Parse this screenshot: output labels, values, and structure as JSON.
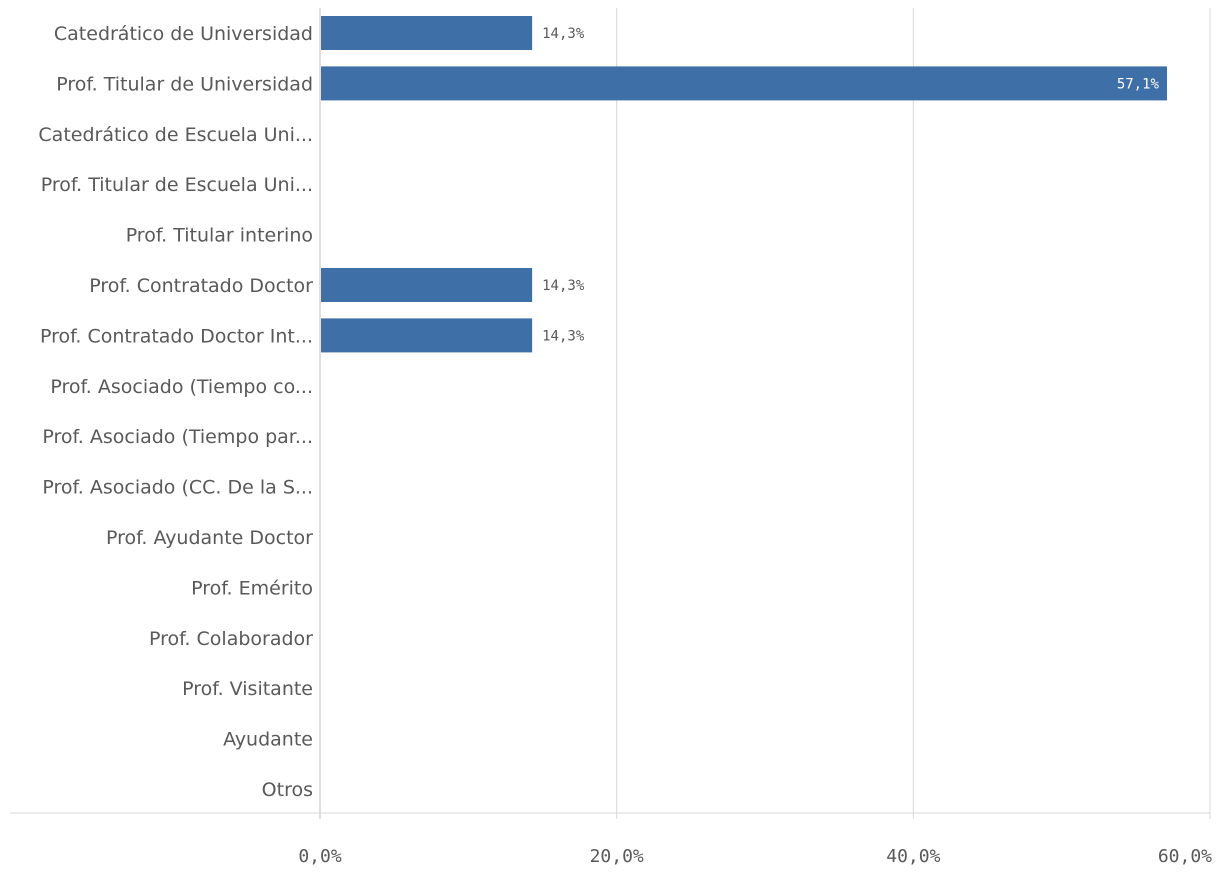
{
  "chart_data": {
    "type": "bar",
    "orientation": "horizontal",
    "categories": [
      "Catedrático de Universidad",
      "Prof. Titular de Universidad",
      "Catedrático de Escuela Uni...",
      "Prof. Titular de Escuela Uni...",
      "Prof. Titular interino",
      "Prof. Contratado Doctor",
      "Prof. Contratado Doctor Int...",
      "Prof. Asociado (Tiempo co...",
      "Prof. Asociado (Tiempo par...",
      "Prof. Asociado (CC. De la S...",
      "Prof. Ayudante Doctor",
      "Prof. Emérito",
      "Prof. Colaborador",
      "Prof. Visitante",
      "Ayudante",
      "Otros"
    ],
    "values": [
      14.3,
      57.1,
      0,
      0,
      0,
      14.3,
      14.3,
      0,
      0,
      0,
      0,
      0,
      0,
      0,
      0,
      0
    ],
    "data_labels": [
      "14,3%",
      "57,1%",
      "",
      "",
      "",
      "14,3%",
      "14,3%",
      "",
      "",
      "",
      "",
      "",
      "",
      "",
      "",
      ""
    ],
    "xlim": [
      0,
      60
    ],
    "x_ticks": [
      0,
      20,
      40,
      60
    ],
    "x_tick_labels": [
      "0,0%",
      "20,0%",
      "40,0%",
      "60,0%"
    ],
    "grid": true,
    "bar_color": "#3e6fa6",
    "grid_color": "#d9d9d9",
    "title": "",
    "xlabel": "",
    "ylabel": ""
  }
}
